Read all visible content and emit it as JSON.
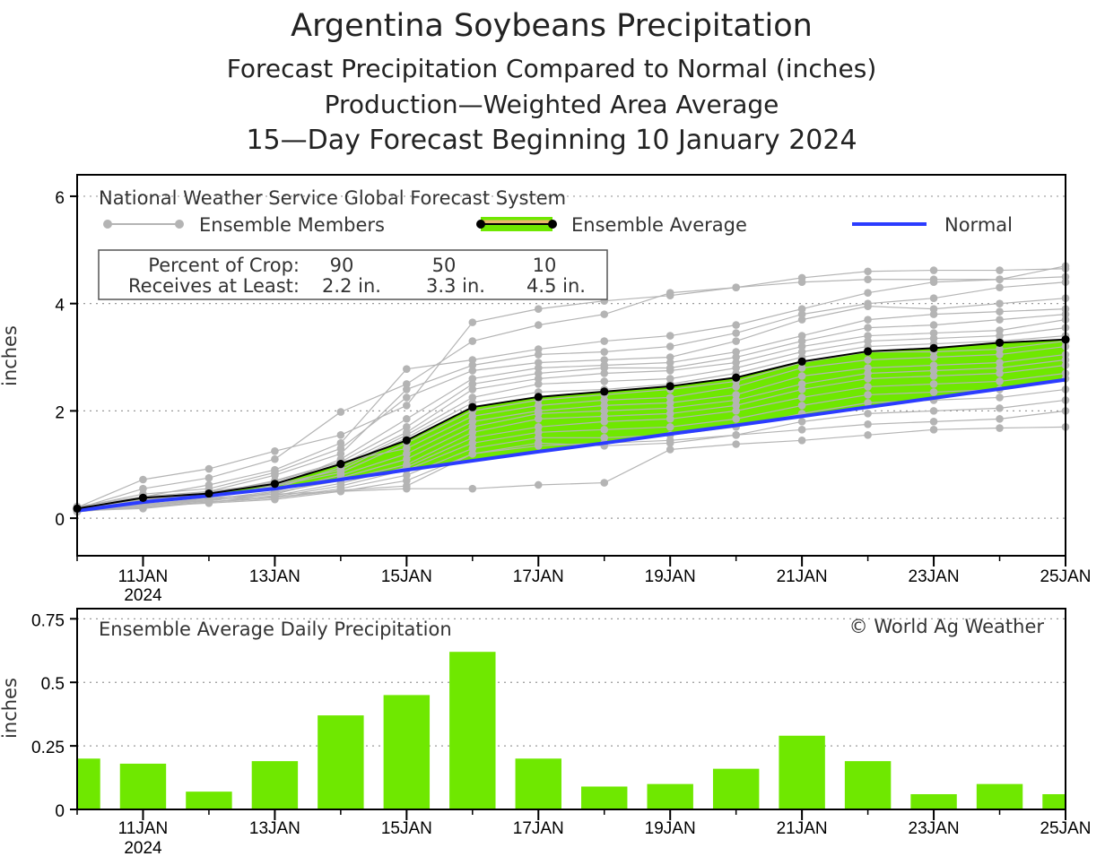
{
  "titles": {
    "line1": "Argentina Soybeans Precipitation",
    "line2": "Forecast Precipitation Compared to Normal (inches)",
    "line3": "Production—Weighted Area Average",
    "line4": "15—Day Forecast Beginning 10 January 2024"
  },
  "legend": {
    "system": "National Weather Service Global Forecast System",
    "members": "Ensemble Members",
    "average": "Ensemble Average",
    "normal": "Normal"
  },
  "crop_box": {
    "row1_label": "Percent of Crop:",
    "row2_label": "Receives at Least:",
    "percents": [
      "90",
      "50",
      "10"
    ],
    "amounts": [
      "2.2 in.",
      "3.3 in.",
      "4.5 in."
    ]
  },
  "lower": {
    "title": "Ensemble Average Daily Precipitation",
    "credit": "© World Ag Weather"
  },
  "colors": {
    "fill": "#6fe800",
    "normal": "#2b3cff",
    "members": "#b4b4b4",
    "average": "#000000",
    "legend_avg": "#e8b86a"
  },
  "chart_data": [
    {
      "type": "line",
      "title": "Forecast Precipitation Compared to Normal (inches)",
      "ylabel": "inches",
      "ylim": [
        -0.7,
        6.4
      ],
      "yticks": [
        "0",
        "2",
        "4",
        "6"
      ],
      "x": [
        10,
        11,
        12,
        13,
        14,
        15,
        16,
        17,
        18,
        19,
        20,
        21,
        22,
        23,
        24,
        25
      ],
      "xtick_days": [
        11,
        13,
        15,
        17,
        19,
        21,
        23,
        25
      ],
      "xticks": [
        "11JAN",
        "13JAN",
        "15JAN",
        "17JAN",
        "19JAN",
        "21JAN",
        "23JAN",
        "25JAN"
      ],
      "xtick_year": "2024",
      "series": [
        {
          "name": "Ensemble Average",
          "values": [
            0.18,
            0.38,
            0.46,
            0.64,
            1.01,
            1.45,
            2.07,
            2.26,
            2.36,
            2.46,
            2.62,
            2.92,
            3.11,
            3.17,
            3.27,
            3.33
          ]
        },
        {
          "name": "Normal",
          "values": [
            0.14,
            0.3,
            0.42,
            0.55,
            0.72,
            0.9,
            1.07,
            1.24,
            1.4,
            1.57,
            1.73,
            1.9,
            2.07,
            2.24,
            2.41,
            2.58
          ]
        }
      ],
      "members": [
        [
          0.2,
          0.72,
          0.92,
          1.25,
          1.55,
          2.1,
          3.65,
          3.9,
          4.05,
          4.15,
          4.3,
          4.4,
          4.45,
          4.45,
          4.45,
          4.7
        ],
        [
          0.18,
          0.55,
          0.75,
          1.1,
          1.98,
          2.5,
          3.3,
          3.6,
          3.8,
          4.2,
          4.3,
          4.48,
          4.6,
          4.62,
          4.62,
          4.65
        ],
        [
          0.22,
          0.4,
          0.62,
          0.9,
          1.4,
          2.78,
          2.95,
          3.15,
          3.3,
          3.4,
          3.6,
          3.9,
          4.2,
          4.4,
          4.45,
          4.5
        ],
        [
          0.15,
          0.35,
          0.5,
          0.8,
          1.2,
          2.4,
          2.85,
          3.05,
          3.1,
          3.2,
          3.45,
          3.8,
          4.0,
          4.1,
          4.3,
          4.4
        ],
        [
          0.2,
          0.45,
          0.55,
          0.85,
          1.3,
          2.25,
          2.75,
          2.9,
          2.95,
          3.0,
          3.3,
          3.7,
          3.95,
          3.9,
          4.0,
          4.1
        ],
        [
          0.18,
          0.3,
          0.4,
          0.6,
          1.1,
          1.85,
          2.6,
          2.8,
          2.85,
          2.9,
          3.1,
          3.4,
          3.7,
          3.8,
          3.85,
          3.9
        ],
        [
          0.16,
          0.35,
          0.45,
          0.7,
          1.05,
          1.7,
          2.5,
          2.7,
          2.8,
          2.8,
          3.0,
          3.3,
          3.55,
          3.6,
          3.7,
          3.8
        ],
        [
          0.17,
          0.4,
          0.5,
          0.65,
          1.0,
          1.6,
          2.4,
          2.6,
          2.7,
          2.75,
          2.9,
          3.2,
          3.4,
          3.45,
          3.5,
          3.7
        ],
        [
          0.15,
          0.28,
          0.42,
          0.55,
          0.95,
          1.55,
          2.25,
          2.5,
          2.55,
          2.6,
          2.8,
          3.1,
          3.3,
          3.35,
          3.4,
          3.55
        ],
        [
          0.18,
          0.33,
          0.48,
          0.62,
          0.9,
          1.5,
          2.15,
          2.35,
          2.4,
          2.5,
          2.7,
          3.0,
          3.2,
          3.25,
          3.3,
          3.4
        ],
        [
          0.16,
          0.3,
          0.4,
          0.6,
          0.85,
          1.4,
          2.0,
          2.2,
          2.3,
          2.4,
          2.55,
          2.9,
          3.1,
          3.1,
          3.15,
          3.3
        ],
        [
          0.17,
          0.38,
          0.45,
          0.68,
          1.05,
          1.3,
          1.9,
          2.1,
          2.2,
          2.25,
          2.45,
          2.8,
          2.95,
          3.0,
          3.05,
          3.2
        ],
        [
          0.15,
          0.26,
          0.35,
          0.5,
          0.8,
          1.2,
          1.8,
          2.0,
          2.1,
          2.15,
          2.3,
          2.65,
          2.8,
          2.85,
          2.9,
          3.05
        ],
        [
          0.14,
          0.25,
          0.38,
          0.45,
          0.75,
          1.1,
          1.7,
          1.95,
          2.0,
          2.05,
          2.2,
          2.5,
          2.7,
          2.75,
          2.8,
          2.95
        ],
        [
          0.13,
          0.24,
          0.32,
          0.48,
          0.7,
          1.0,
          1.6,
          1.85,
          1.9,
          1.95,
          2.1,
          2.4,
          2.6,
          2.65,
          2.7,
          2.85
        ],
        [
          0.12,
          0.22,
          0.3,
          0.42,
          0.65,
          0.95,
          1.5,
          1.7,
          1.8,
          1.85,
          2.0,
          2.25,
          2.45,
          2.5,
          2.55,
          2.7
        ],
        [
          0.14,
          0.26,
          0.35,
          0.4,
          0.6,
          0.9,
          1.4,
          1.6,
          1.65,
          1.7,
          1.85,
          2.1,
          2.3,
          2.35,
          2.4,
          2.6
        ],
        [
          0.13,
          0.2,
          0.3,
          0.38,
          0.55,
          0.8,
          1.3,
          1.5,
          1.5,
          1.55,
          1.7,
          1.95,
          2.15,
          2.2,
          2.25,
          2.4
        ],
        [
          0.15,
          0.25,
          0.33,
          0.45,
          0.5,
          0.7,
          1.2,
          1.4,
          1.35,
          1.4,
          1.55,
          1.8,
          1.95,
          2.0,
          2.05,
          2.2
        ],
        [
          0.12,
          0.22,
          0.28,
          0.35,
          0.5,
          0.55,
          0.55,
          0.62,
          0.66,
          1.28,
          1.38,
          1.45,
          1.55,
          1.65,
          1.68,
          1.7
        ],
        [
          0.14,
          0.18,
          0.3,
          0.38,
          0.52,
          0.6,
          1.2,
          1.35,
          1.4,
          1.45,
          1.55,
          1.65,
          1.75,
          1.8,
          1.85,
          2.0
        ]
      ]
    },
    {
      "type": "bar",
      "title": "Ensemble Average Daily Precipitation",
      "ylabel": "inches",
      "ylim": [
        0,
        0.79
      ],
      "yticks": [
        "0",
        "0.25",
        "0.5",
        "0.75"
      ],
      "x": [
        10,
        11,
        12,
        13,
        14,
        15,
        16,
        17,
        18,
        19,
        20,
        21,
        22,
        23,
        24,
        25
      ],
      "values": [
        0.2,
        0.18,
        0.07,
        0.19,
        0.37,
        0.45,
        0.62,
        0.2,
        0.09,
        0.1,
        0.16,
        0.29,
        0.19,
        0.06,
        0.1,
        0.06
      ],
      "xticks": [
        "11JAN",
        "13JAN",
        "15JAN",
        "17JAN",
        "19JAN",
        "21JAN",
        "23JAN",
        "25JAN"
      ],
      "xtick_year": "2024"
    }
  ]
}
